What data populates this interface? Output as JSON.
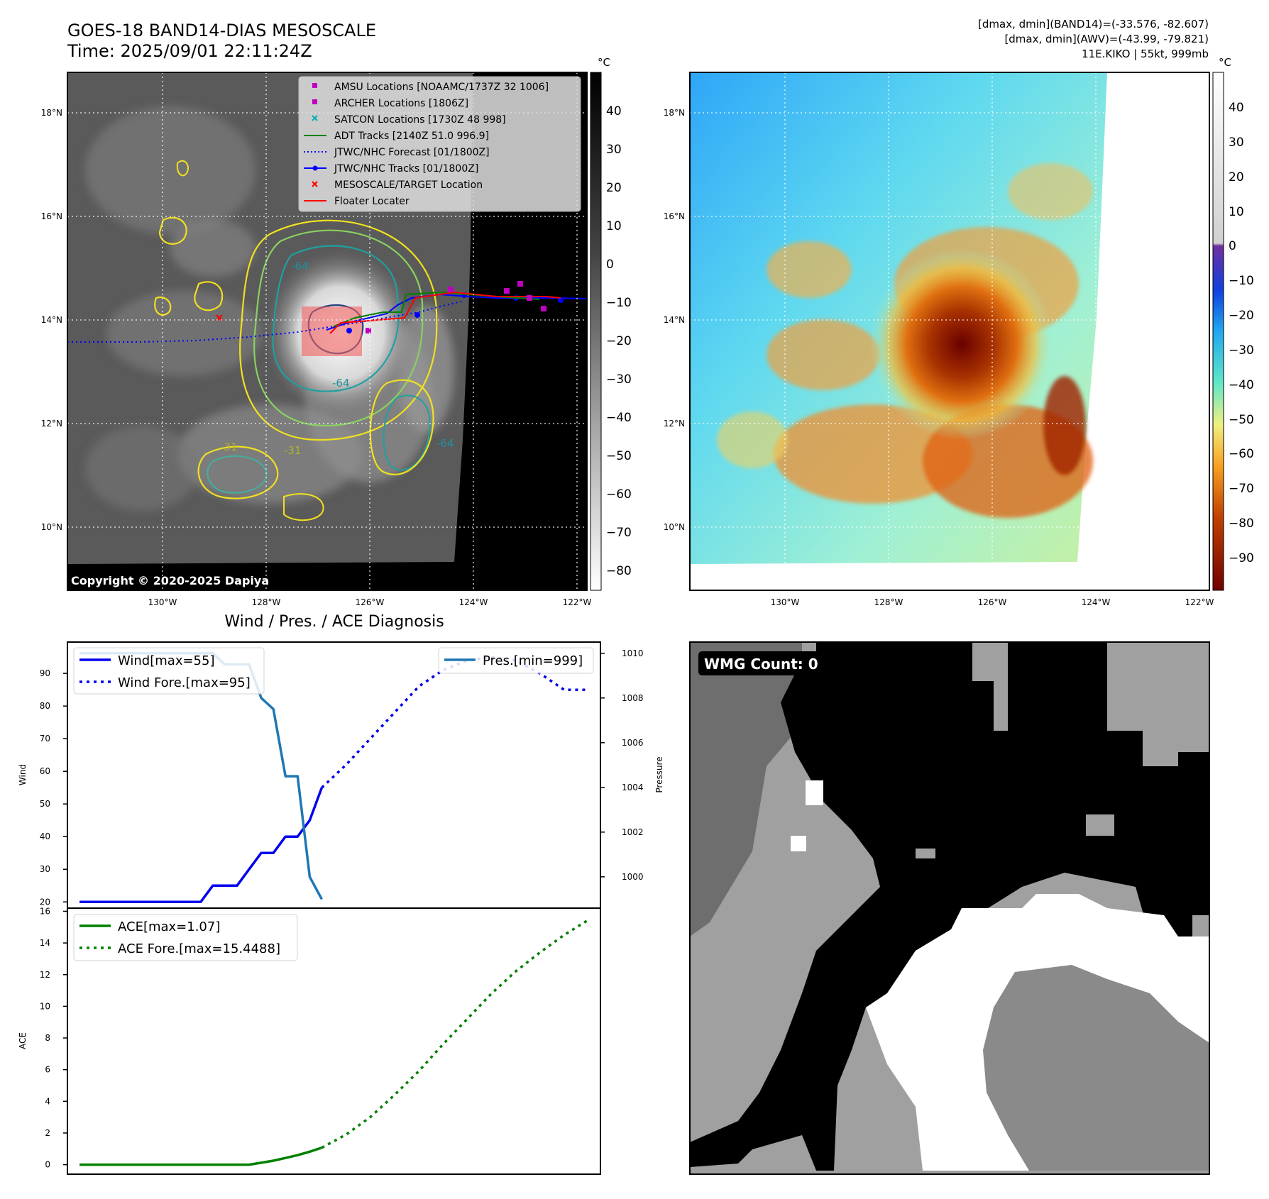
{
  "header": {
    "title": "GOES-18 BAND14-DIAS MESOSCALE",
    "time": "Time: 2025/09/01 22:11:24Z",
    "stat1": "[dmax, dmin](BAND14)=(-33.576, -82.607)",
    "stat2": "[dmax, dmin](AWV)=(-43.99, -79.821)",
    "stat3": "11E.KIKO | 55kt, 999mb"
  },
  "map_axes": {
    "lat_ticks": [
      "18°N",
      "16°N",
      "14°N",
      "12°N",
      "10°N"
    ],
    "lon_ticks": [
      "130°W",
      "128°W",
      "126°W",
      "124°W",
      "122°W"
    ]
  },
  "ir_map": {
    "copyright": "Copyright © 2020-2025 Dapiya",
    "contour_labels": [
      "-64",
      "-31",
      "-31",
      "-64",
      "-64"
    ],
    "legend": [
      {
        "label": "AMSU Locations [NOAAMC/1737Z 32 1006]",
        "color": "#c000c0",
        "marker": "square"
      },
      {
        "label": "ARCHER Locations [1806Z]",
        "color": "#c000c0",
        "marker": "square"
      },
      {
        "label": "SATCON Locations [1730Z 48 998]",
        "color": "#00b0b0",
        "marker": "x"
      },
      {
        "label": "ADT Tracks [2140Z 51.0 996.9]",
        "color": "#008000",
        "marker": "line"
      },
      {
        "label": "JTWC/NHC Forecast [01/1800Z]",
        "color": "#0000ff",
        "marker": "dotted"
      },
      {
        "label": "JTWC/NHC Tracks [01/1800Z]",
        "color": "#0000ff",
        "marker": "line-dot"
      },
      {
        "label": "MESOSCALE/TARGET Location",
        "color": "#ff0000",
        "marker": "x"
      },
      {
        "label": "Floater Locater",
        "color": "#ff0000",
        "marker": "line"
      }
    ],
    "colorbar": {
      "unit": "°C",
      "ticks": [
        "40",
        "30",
        "20",
        "10",
        "0",
        "−10",
        "−20",
        "−30",
        "−40",
        "−50",
        "−60",
        "−70",
        "−80"
      ]
    }
  },
  "wv_map": {
    "colorbar": {
      "unit": "°C",
      "ticks": [
        "40",
        "30",
        "20",
        "10",
        "0",
        "−10",
        "−20",
        "−30",
        "−40",
        "−50",
        "−60",
        "−70",
        "−80",
        "−90"
      ]
    }
  },
  "wmg": {
    "label": "WMG Count: 0"
  },
  "chart_data": [
    {
      "type": "line",
      "title": "Wind / Pres. / ACE Diagnosis",
      "ylabel": "Wind",
      "ylabel2": "Pressure",
      "ylim": [
        18.1,
        99.6
      ],
      "y2lim": [
        998.6,
        1010.5
      ],
      "x": [
        0,
        1,
        2,
        3,
        4,
        5,
        6,
        7,
        8,
        9,
        10,
        11,
        12,
        13,
        14,
        15,
        16,
        17,
        18,
        19,
        20,
        21,
        22,
        23,
        24,
        25,
        26,
        27,
        28,
        29,
        30,
        31,
        32,
        33,
        34,
        35,
        36,
        37,
        38,
        39,
        40,
        41,
        42
      ],
      "yticks": [
        "90",
        "80",
        "70",
        "60",
        "50",
        "40",
        "30",
        "20"
      ],
      "y2ticks": [
        "1010",
        "1008",
        "1006",
        "1004",
        "1002",
        "1000"
      ],
      "series": [
        {
          "name": "Wind[max=55]",
          "color": "#0000ee",
          "style": "solid",
          "axis": "left",
          "x": [
            0,
            10,
            11,
            12,
            13,
            14,
            15,
            16,
            17,
            18,
            19,
            20
          ],
          "values": [
            20,
            20,
            25,
            25,
            25,
            30,
            35,
            35,
            40,
            40,
            45,
            55
          ]
        },
        {
          "name": "Wind Fore.[max=95]",
          "color": "#0000ee",
          "style": "dotted",
          "axis": "left",
          "x": [
            20,
            22,
            24,
            26,
            28,
            30,
            32,
            34,
            36,
            38,
            40,
            42
          ],
          "values": [
            55,
            62,
            70,
            78,
            86,
            91,
            94,
            95,
            94,
            90,
            85,
            85
          ]
        },
        {
          "name": "Pres.[min=999]",
          "color": "#1f77b4",
          "style": "solid",
          "axis": "right",
          "x": [
            0,
            11,
            12,
            14,
            15,
            16,
            17,
            18,
            19,
            20
          ],
          "values": [
            1010,
            1010,
            1009.5,
            1009.5,
            1008,
            1007.5,
            1004.5,
            1004.5,
            1000,
            999
          ]
        }
      ]
    },
    {
      "type": "line",
      "ylabel": "ACE",
      "ylim": [
        -0.6,
        16.2
      ],
      "x": [
        0,
        1,
        2,
        3,
        4,
        5,
        6,
        7,
        8,
        9,
        10,
        11,
        12,
        13,
        14,
        15,
        16,
        17,
        18,
        19,
        20,
        21,
        22,
        23,
        24,
        25,
        26,
        27,
        28,
        29,
        30,
        31,
        32,
        33,
        34,
        35,
        36,
        37,
        38,
        39,
        40,
        41,
        42
      ],
      "yticks": [
        "16",
        "14",
        "12",
        "10",
        "8",
        "6",
        "4",
        "2",
        "0"
      ],
      "series": [
        {
          "name": "ACE[max=1.07]",
          "color": "#008000",
          "style": "solid",
          "x": [
            0,
            14,
            15,
            16,
            17,
            18,
            19,
            20
          ],
          "values": [
            0,
            0,
            0.12,
            0.25,
            0.42,
            0.6,
            0.82,
            1.07
          ]
        },
        {
          "name": "ACE Fore.[max=15.4488]",
          "color": "#008000",
          "style": "dotted",
          "x": [
            20,
            22,
            24,
            26,
            28,
            30,
            32,
            34,
            36,
            38,
            40,
            42
          ],
          "values": [
            1.07,
            1.9,
            3.0,
            4.4,
            5.9,
            7.6,
            9.2,
            10.8,
            12.2,
            13.4,
            14.5,
            15.45
          ]
        }
      ]
    }
  ]
}
